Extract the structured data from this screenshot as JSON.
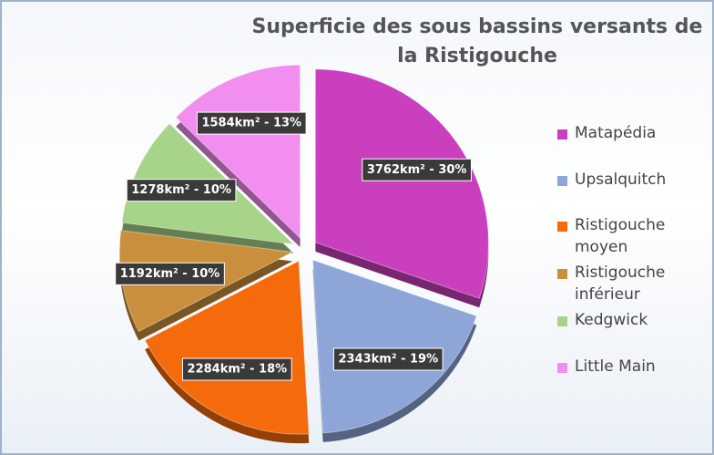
{
  "chart_data": {
    "type": "pie",
    "title": "Superficie des sous bassins versants de la Ristigouche",
    "categories": [
      "Matapédia",
      "Upsalquitch",
      "Ristigouche moyen",
      "Ristigouche inférieur",
      "Kedgwick",
      "Little Main"
    ],
    "values": [
      3762,
      2343,
      2284,
      1192,
      1278,
      1584
    ],
    "value_labels": [
      "3762km² - 30%",
      "2343km² - 19%",
      "2284km² - 18%",
      "1192km² - 10%",
      "1278km² - 10%",
      "1584km² - 13%"
    ],
    "colors": [
      "#c93fbd",
      "#8ea5d8",
      "#f56a0a",
      "#c98f3c",
      "#a8d48a",
      "#f28ef0"
    ],
    "legend": "right"
  }
}
